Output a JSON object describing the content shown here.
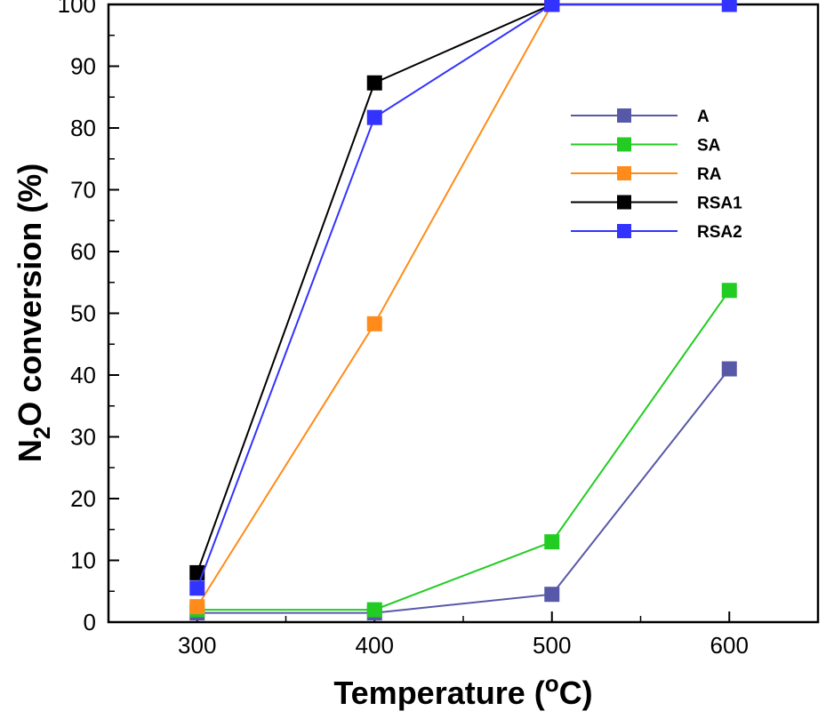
{
  "chart_data": {
    "type": "line",
    "xlabel_main": "Temperature (",
    "xlabel_sup": "o",
    "xlabel_end": "C)",
    "ylabel_main": "N",
    "ylabel_sub": "2",
    "ylabel_end": "O conversion (%)",
    "x": [
      300,
      400,
      500,
      600
    ],
    "xlim": [
      250,
      650
    ],
    "ylim": [
      0,
      100
    ],
    "xticks": [
      300,
      400,
      500,
      600
    ],
    "yticks": [
      0,
      10,
      20,
      30,
      40,
      50,
      60,
      70,
      80,
      90,
      100
    ],
    "grid": false,
    "legend_position": "top-right",
    "series": [
      {
        "name": "A",
        "color": "#5858a8",
        "values": [
          1.5,
          1.5,
          4.5,
          41
        ]
      },
      {
        "name": "SA",
        "color": "#22cc22",
        "values": [
          2,
          2,
          13,
          53.7
        ]
      },
      {
        "name": "RA",
        "color": "#ff8c1a",
        "values": [
          2.5,
          48.3,
          100,
          null
        ]
      },
      {
        "name": "RSA1",
        "color": "#000000",
        "values": [
          8,
          87.3,
          100,
          null
        ]
      },
      {
        "name": "RSA2",
        "color": "#3333ff",
        "values": [
          5.5,
          81.7,
          100,
          100
        ]
      }
    ]
  }
}
